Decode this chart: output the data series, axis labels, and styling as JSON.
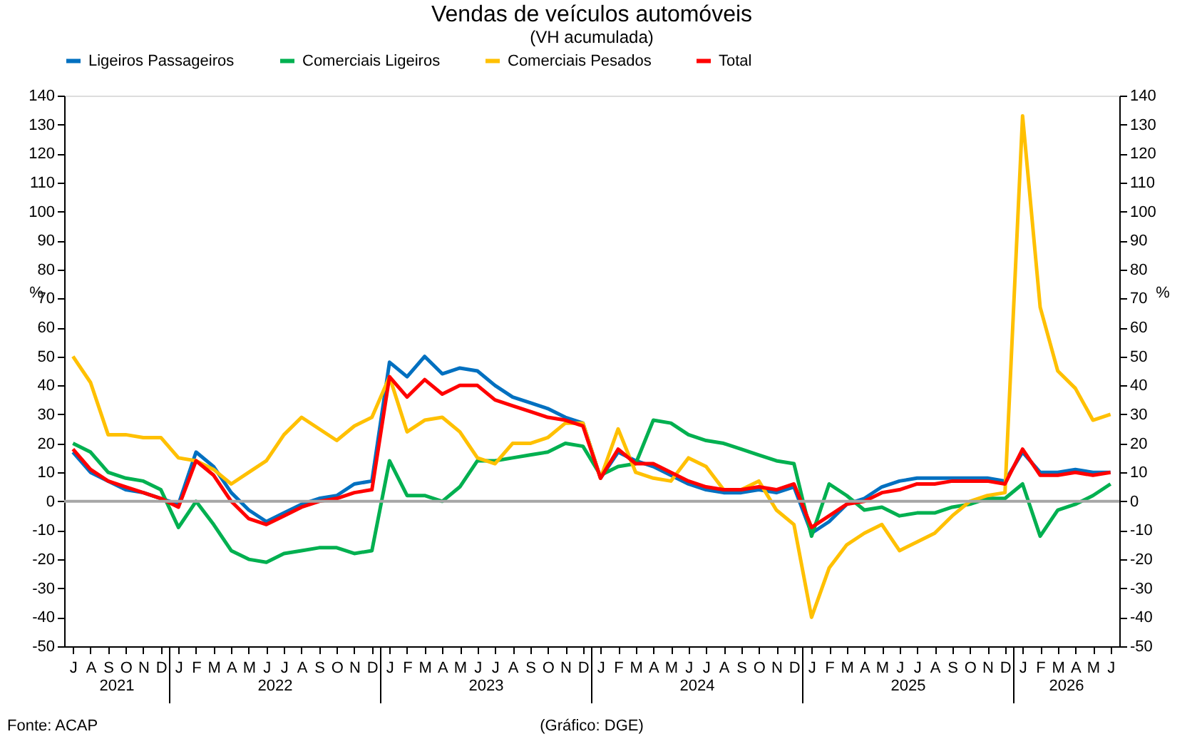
{
  "chart_data": {
    "type": "line",
    "title": "Vendas de veículos automóveis",
    "subtitle": "(VH acumulada)",
    "ylabel": "%",
    "y2label": "%",
    "categories": [
      "J",
      "A",
      "S",
      "O",
      "N",
      "D",
      "J",
      "F",
      "M",
      "A",
      "M",
      "J",
      "J",
      "A",
      "S",
      "O",
      "N",
      "D",
      "J",
      "F",
      "M",
      "A",
      "M",
      "J",
      "J",
      "A",
      "S",
      "O",
      "N",
      "D",
      "J",
      "F",
      "M",
      "A",
      "M",
      "J",
      "J",
      "A",
      "S",
      "O",
      "N",
      "D",
      "J",
      "F",
      "M",
      "A",
      "M",
      "J",
      "J",
      "A",
      "S",
      "O",
      "N",
      "D",
      "J",
      "F",
      "M",
      "A",
      "M",
      "J"
    ],
    "series": [
      {
        "name": "Ligeiros Passageiros",
        "color": "#0070c0",
        "values": [
          17,
          10,
          7,
          4,
          3,
          1,
          -1,
          17,
          12,
          3,
          -3,
          -7,
          -4,
          -1,
          1,
          2,
          6,
          7,
          48,
          43,
          50,
          44,
          46,
          45,
          40,
          36,
          34,
          32,
          29,
          27,
          8,
          17,
          14,
          12,
          9,
          6,
          4,
          3,
          3,
          4,
          3,
          5,
          -11,
          -7,
          -1,
          1,
          5,
          7,
          8,
          8,
          8,
          8,
          8,
          7,
          17,
          10,
          10,
          11,
          10,
          10
        ]
      },
      {
        "name": "Comerciais Ligeiros",
        "color": "#00b050",
        "values": [
          20,
          17,
          10,
          8,
          7,
          4,
          -9,
          0,
          -8,
          -17,
          -20,
          -21,
          -18,
          -17,
          -16,
          -16,
          -18,
          -17,
          14,
          2,
          2,
          0,
          5,
          14,
          14,
          15,
          16,
          17,
          20,
          19,
          9,
          12,
          13,
          28,
          27,
          23,
          21,
          20,
          18,
          16,
          14,
          13,
          -12,
          6,
          2,
          -3,
          -2,
          -5,
          -4,
          -4,
          -2,
          -1,
          1,
          1,
          6,
          -12,
          -3,
          -1,
          2,
          6
        ]
      },
      {
        "name": "Comerciais Pesados",
        "color": "#ffc000",
        "values": [
          50,
          41,
          23,
          23,
          22,
          22,
          15,
          14,
          11,
          6,
          10,
          14,
          23,
          29,
          25,
          21,
          26,
          29,
          43,
          24,
          28,
          29,
          24,
          15,
          13,
          20,
          20,
          22,
          27,
          27,
          8,
          25,
          10,
          8,
          7,
          15,
          12,
          4,
          4,
          7,
          -3,
          -8,
          -40,
          -23,
          -15,
          -11,
          -8,
          -17,
          -14,
          -11,
          -5,
          0,
          2,
          3,
          133,
          67,
          45,
          39,
          28,
          30
        ]
      },
      {
        "name": "Total",
        "color": "#ff0000",
        "values": [
          18,
          11,
          7,
          5,
          3,
          1,
          -2,
          14,
          9,
          0,
          -6,
          -8,
          -5,
          -2,
          0,
          1,
          3,
          4,
          43,
          36,
          42,
          37,
          40,
          40,
          35,
          33,
          31,
          29,
          28,
          26,
          8,
          18,
          13,
          13,
          10,
          7,
          5,
          4,
          4,
          5,
          4,
          6,
          -9,
          -5,
          -1,
          0,
          3,
          4,
          6,
          6,
          7,
          7,
          7,
          6,
          18,
          9,
          9,
          10,
          9,
          10
        ]
      }
    ],
    "ylim": [
      -50,
      140
    ],
    "yticks": [
      -50,
      -40,
      -30,
      -20,
      -10,
      0,
      10,
      20,
      30,
      40,
      50,
      60,
      70,
      80,
      90,
      100,
      110,
      120,
      130,
      140
    ],
    "y2lim": [
      -50,
      140
    ],
    "y2ticks": [
      -50,
      -40,
      -30,
      -20,
      -10,
      0,
      10,
      20,
      30,
      40,
      50,
      60,
      70,
      80,
      90,
      100,
      110,
      120,
      130,
      140
    ],
    "ref_lines": [
      {
        "axis": "y",
        "value": 0,
        "color": "#a6a6a6"
      }
    ],
    "legend": "top",
    "grid": false,
    "marker": "none",
    "line_style": "solid",
    "annotations": [
      "2021",
      "2022",
      "2023",
      "2024",
      "2025",
      "2026",
      "Fonte: ACAP",
      "(Gráfico: DGE)"
    ]
  }
}
